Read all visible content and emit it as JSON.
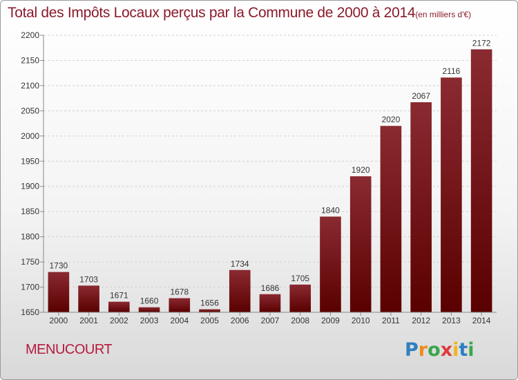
{
  "chart_data": {
    "type": "bar",
    "title": "Total des Impôts Locaux perçus par la Commune de 2000 à 2014",
    "subtitle": "(en milliers d'€)",
    "categories": [
      "2000",
      "2001",
      "2002",
      "2003",
      "2004",
      "2005",
      "2006",
      "2007",
      "2008",
      "2009",
      "2010",
      "2011",
      "2012",
      "2013",
      "2014"
    ],
    "values": [
      1730,
      1703,
      1671,
      1660,
      1678,
      1656,
      1734,
      1686,
      1705,
      1840,
      1920,
      2020,
      2067,
      2116,
      2172
    ],
    "ylim": [
      1650,
      2200
    ],
    "yticks": [
      1650,
      1700,
      1750,
      1800,
      1850,
      1900,
      1950,
      2000,
      2050,
      2100,
      2150,
      2200
    ],
    "grid": true,
    "bar_color": "#7a1620"
  },
  "commune": "MENUCOURT",
  "logo": {
    "letters": [
      "P",
      "r",
      "o",
      "x",
      "i",
      "t",
      "i"
    ],
    "colors": [
      "#2f7fc1",
      "#f08a1c",
      "#3aa64a",
      "#e03a3a",
      "#f0b41c",
      "#2f7fc1",
      "#3aa64a"
    ]
  }
}
